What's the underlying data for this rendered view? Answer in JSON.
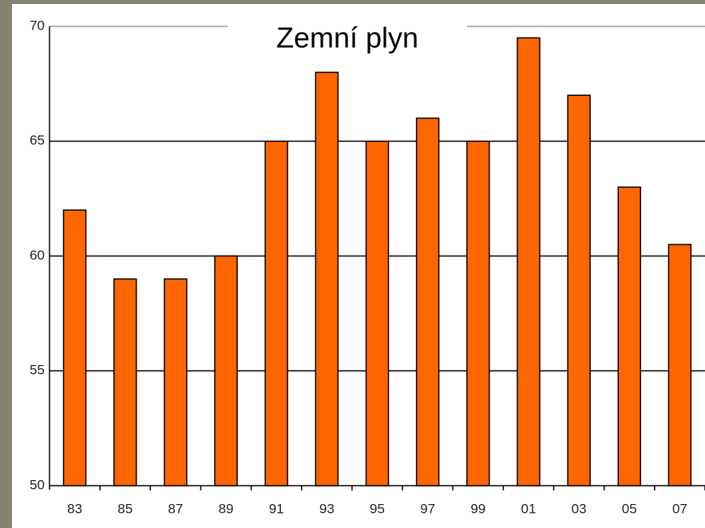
{
  "chart_data": {
    "type": "bar",
    "title": "Zemní plyn",
    "categories": [
      "83",
      "85",
      "87",
      "89",
      "91",
      "93",
      "95",
      "97",
      "99",
      "01",
      "03",
      "05",
      "07"
    ],
    "values": [
      62,
      59,
      59,
      60,
      65,
      68,
      65,
      66,
      65,
      69.5,
      67,
      63,
      60.5
    ],
    "color": "#ff6600",
    "ylim": [
      50,
      70
    ],
    "yticks": [
      50,
      55,
      60,
      65,
      70
    ],
    "grid": true
  }
}
